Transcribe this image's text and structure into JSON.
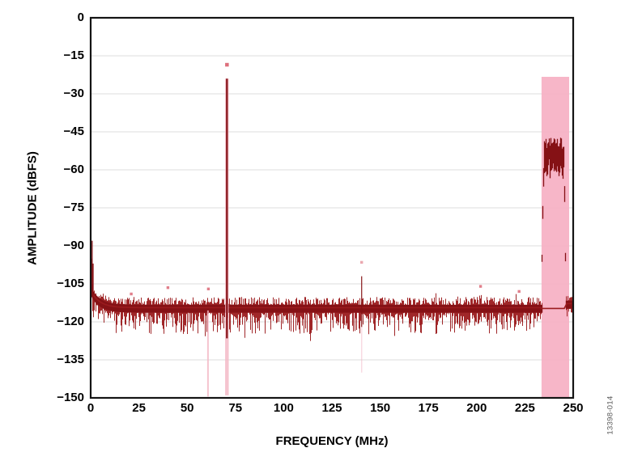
{
  "figure": {
    "watermark": "13398-014",
    "background": "#ffffff"
  },
  "chart_data": {
    "type": "line",
    "title": "",
    "xlabel": "FREQUENCY (MHz)",
    "ylabel": "AMPLITUDE (dBFS)",
    "xlim": [
      0,
      250
    ],
    "ylim": [
      -150,
      0
    ],
    "grid": "horizontal gridlines only, light gray",
    "legend": "none",
    "xticks": {
      "values": [
        0,
        25,
        50,
        75,
        100,
        125,
        150,
        175,
        200,
        225,
        250
      ],
      "labels": [
        "0",
        "25",
        "50",
        "75",
        "100",
        "125",
        "150",
        "175",
        "200",
        "225",
        "250"
      ]
    },
    "yticks": {
      "values": [
        0,
        -15,
        -30,
        -45,
        -60,
        -75,
        -90,
        -105,
        -120,
        -135,
        -150
      ],
      "labels": [
        "0",
        "−15",
        "−30",
        "−45",
        "−60",
        "−75",
        "−90",
        "−105",
        "−120",
        "−135",
        "−150"
      ]
    },
    "noise_floor": {
      "mean_dbfs": -114.4,
      "rise_at_dc_db": 6.8,
      "rise_tau_mhz": 4.5,
      "fuzz_above_db": 3.2,
      "fuzz_below_db": 8.5,
      "gap_start_mhz": 233.7,
      "gap_stop_mhz": 246.2,
      "post_gap_mean_dbfs": -112.8
    },
    "dc_leakage": {
      "freq_mhz": 0.5,
      "peak_dbfs": -88
    },
    "fundamental_tone": {
      "freq_mhz": 70.6,
      "peak_dbfs": -24,
      "marker_dbfs": -18.5,
      "below_floor_dbfs": -126.5
    },
    "spur_lines": [
      {
        "freq_mhz": 140.4,
        "peak_dbfs": -102,
        "bottom_dbfs": -122,
        "marker_dbfs": -96.5
      }
    ],
    "spur_markers": [
      {
        "freq_mhz": 21,
        "dbfs": -109
      },
      {
        "freq_mhz": 40,
        "dbfs": -106.5
      },
      {
        "freq_mhz": 61,
        "dbfs": -107
      },
      {
        "freq_mhz": 202,
        "dbfs": -106
      },
      {
        "freq_mhz": 222,
        "dbfs": -108
      }
    ],
    "faint_vertical_lines": [
      {
        "freq_mhz": 60.8,
        "top_dbfs": -115.5,
        "bottom_dbfs": -149.5
      }
    ],
    "alias_band": {
      "start_mhz": 233.7,
      "plateau_start_mhz": 235.0,
      "plateau_stop_mhz": 245.2,
      "stop_mhz": 246.2,
      "plateau_top_dbfs": -49.5,
      "plateau_thickness_db": 10,
      "edge_base_dbfs": -106
    },
    "highlight_band": {
      "start_mhz": 233.6,
      "stop_mhz": 247.9,
      "top_dbfs": -23.3,
      "bottom_dbfs": -150,
      "color": "#f6aec2"
    },
    "colors": {
      "trace": "#9b1b1e",
      "trace_dark": "#851115",
      "marker": "#d95f6e",
      "halo": "#f3b6c4",
      "band": "#f6aec2",
      "grid": "#e4e4e4",
      "axis": "#141414",
      "tick_text": "#000000",
      "watermark": "#5a5a5a"
    }
  }
}
